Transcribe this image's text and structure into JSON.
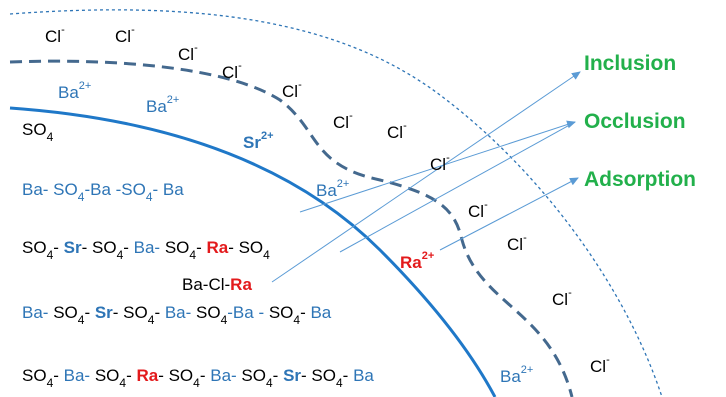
{
  "ions": [
    {
      "base": "Cl",
      "sup": "-"
    },
    {
      "base": "Cl",
      "sup": "-"
    },
    {
      "base": "Cl",
      "sup": "-"
    },
    {
      "base": "Cl",
      "sup": "-"
    },
    {
      "base": "Cl",
      "sup": "-"
    },
    {
      "base": "Cl",
      "sup": "-"
    },
    {
      "base": "Cl",
      "sup": "-"
    },
    {
      "base": "Cl",
      "sup": "-"
    },
    {
      "base": "Cl",
      "sup": "-"
    },
    {
      "base": "Cl",
      "sup": "-"
    },
    {
      "base": "Cl",
      "sup": "-"
    },
    {
      "base": "Cl",
      "sup": "-"
    },
    {
      "base": "Ba",
      "sup": "2+",
      "color": "#2e75b6"
    },
    {
      "base": "Ba",
      "sup": "2+",
      "color": "#2e75b6"
    },
    {
      "base": "Ba",
      "sup": "2+",
      "color": "#2e75b6"
    },
    {
      "base": "Ba",
      "sup": "2+",
      "color": "#2e75b6"
    },
    {
      "base": "Sr",
      "sup": "2+",
      "color": "#2e75b6",
      "bold": true
    },
    {
      "base": "Ra",
      "sup": "2+",
      "color": "#e31a1c",
      "bold": true
    }
  ],
  "rows": [
    [
      {
        "t": "SO",
        "sub": "4",
        "color": "#000"
      }
    ],
    [
      {
        "t": "Ba- SO",
        "sub": "4",
        "color": "#2e75b6"
      },
      {
        "t": "-Ba -SO",
        "sub": "4",
        "color": "#2e75b6"
      },
      {
        "t": "- Ba",
        "color": "#2e75b6"
      }
    ],
    [
      {
        "t": "SO",
        "sub": "4",
        "color": "#000"
      },
      {
        "t": "- ",
        "color": "#000"
      },
      {
        "t": "Sr",
        "color": "#2e75b6",
        "bold": true
      },
      {
        "t": "- SO",
        "sub": "4",
        "color": "#000"
      },
      {
        "t": "- ",
        "color": "#000"
      },
      {
        "t": "Ba- ",
        "color": "#2e75b6"
      },
      {
        "t": "SO",
        "sub": "4",
        "color": "#000"
      },
      {
        "t": "- ",
        "color": "#000"
      },
      {
        "t": "Ra",
        "color": "#e31a1c",
        "bold": true
      },
      {
        "t": "- SO",
        "sub": "4",
        "color": "#000"
      }
    ],
    [
      {
        "t": "Ba-Cl-",
        "color": "#000"
      },
      {
        "t": "Ra",
        "color": "#e31a1c",
        "bold": true
      }
    ],
    [
      {
        "t": "Ba- ",
        "color": "#2e75b6"
      },
      {
        "t": "SO",
        "sub": "4",
        "color": "#000"
      },
      {
        "t": "- ",
        "color": "#000"
      },
      {
        "t": "Sr",
        "color": "#2e75b6",
        "bold": true
      },
      {
        "t": "- SO",
        "sub": "4",
        "color": "#000"
      },
      {
        "t": "- ",
        "color": "#000"
      },
      {
        "t": "Ba- ",
        "color": "#2e75b6"
      },
      {
        "t": "SO",
        "sub": "4",
        "color": "#000"
      },
      {
        "t": "-Ba - ",
        "color": "#2e75b6"
      },
      {
        "t": "SO",
        "sub": "4",
        "color": "#000"
      },
      {
        "t": "- ",
        "color": "#000"
      },
      {
        "t": "Ba",
        "color": "#2e75b6"
      }
    ],
    [
      {
        "t": "SO",
        "sub": "4",
        "color": "#000"
      },
      {
        "t": "- ",
        "color": "#000"
      },
      {
        "t": "Ba- ",
        "color": "#2e75b6"
      },
      {
        "t": "SO",
        "sub": "4",
        "color": "#000"
      },
      {
        "t": "- ",
        "color": "#000"
      },
      {
        "t": "Ra",
        "color": "#e31a1c",
        "bold": true
      },
      {
        "t": "- SO",
        "sub": "4",
        "color": "#000"
      },
      {
        "t": "- ",
        "color": "#000"
      },
      {
        "t": "Ba- ",
        "color": "#2e75b6"
      },
      {
        "t": "SO",
        "sub": "4",
        "color": "#000"
      },
      {
        "t": "- ",
        "color": "#000"
      },
      {
        "t": "Sr",
        "color": "#2e75b6",
        "bold": true
      },
      {
        "t": "- SO",
        "sub": "4",
        "color": "#000"
      },
      {
        "t": "- ",
        "color": "#000"
      },
      {
        "t": "Ba",
        "color": "#2e75b6"
      }
    ]
  ],
  "labels": [
    "Inclusion",
    "Occlusion",
    "Adsorption"
  ]
}
